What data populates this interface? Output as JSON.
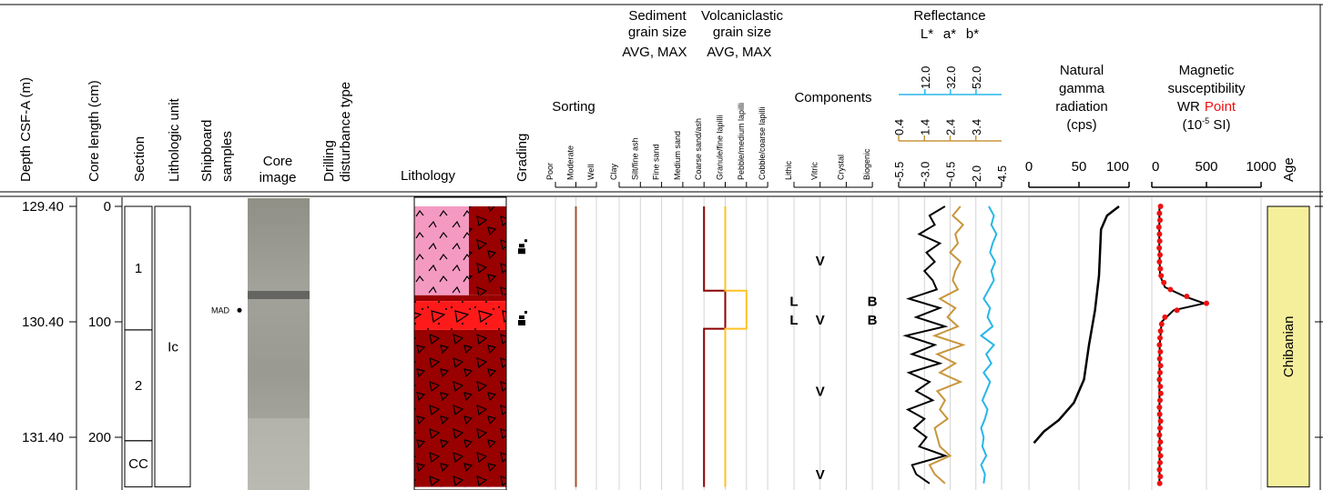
{
  "header": {
    "depth": "Depth CSF-A (m)",
    "core_length": "Core length (cm)",
    "section": "Section",
    "lithologic_unit": "Lithologic unit",
    "shipboard_samples": [
      "Shipboard",
      "samples"
    ],
    "core_image": [
      "Core",
      "image"
    ],
    "drilling_disturbance": [
      "Drilling",
      "disturbance type"
    ],
    "lithology": "Lithology",
    "grading": "Grading",
    "sorting": "Sorting",
    "sediment_grain_size": {
      "title": [
        "Sediment",
        "grain size"
      ],
      "avg": "AVG,",
      "max": "MAX"
    },
    "volcaniclastic_grain_size": {
      "title": [
        "Volcaniclastic",
        "grain size"
      ],
      "avg": "AVG,",
      "max": "MAX"
    },
    "components": "Components",
    "reflectance": {
      "title": "Reflectance",
      "l": "L*",
      "a": "a*",
      "b": "b*"
    },
    "natural_gamma": [
      "Natural",
      "gamma",
      "radiation",
      "(cps)"
    ],
    "magnetic_susceptibility": {
      "lines": [
        "Magnetic",
        "susceptibility"
      ],
      "wr": "WR",
      "point": "Point",
      "unit_open": "(10",
      "unit_exp": "-5",
      "unit_close": " SI)"
    },
    "age": "Age"
  },
  "sorting_classes": [
    "Poor",
    "Moderate",
    "Well"
  ],
  "grain_size_classes": [
    "Clay",
    "Silt/fine ash",
    "Fine sand",
    "Medium sand",
    "Coarse sand/ash",
    "Granule/fine lapilli",
    "Pebble/medium lapilli",
    "Cobble/coarse lapilli"
  ],
  "component_classes": [
    "Lithic",
    "Vitric",
    "Crystal",
    "Biogenic"
  ],
  "depth_ticks": [
    {
      "value": 129.4,
      "label": "129.40"
    },
    {
      "value": 130.4,
      "label": "130.40"
    },
    {
      "value": 131.4,
      "label": "131.40"
    }
  ],
  "core_length_ticks": [
    0,
    100,
    200
  ],
  "sections": [
    {
      "label": "1",
      "top": 0,
      "bottom": 107
    },
    {
      "label": "2",
      "top": 107,
      "bottom": 203
    },
    {
      "label": "CC",
      "top": 203,
      "bottom": 243
    }
  ],
  "lithologic_unit": {
    "label": "Ic",
    "top": 0,
    "bottom": 243
  },
  "samples": [
    {
      "label": "MAD",
      "cm": 90
    }
  ],
  "lithology": [
    {
      "top": 0,
      "bottom": 77,
      "colors": [
        "#f49ac2",
        "#990000"
      ],
      "patterns": [
        "caret",
        "triangle"
      ]
    },
    {
      "top": 77,
      "bottom": 82,
      "colors": [
        "#990000"
      ],
      "patterns": [
        ""
      ]
    },
    {
      "top": 82,
      "bottom": 107,
      "colors": [
        "#ff1a1a"
      ],
      "patterns": [
        "dottri"
      ]
    },
    {
      "top": 107,
      "bottom": 243,
      "colors": [
        "#990000"
      ],
      "patterns": [
        "triangle"
      ]
    }
  ],
  "grading_cm": [
    38,
    100
  ],
  "sorting": {
    "color": "#a0522d",
    "steps": [
      {
        "top": 0,
        "bottom": 243,
        "class": 1
      }
    ]
  },
  "grain_size_avg": {
    "color": "#8b0000",
    "steps": [
      {
        "top": 0,
        "bottom": 73,
        "class": 4
      },
      {
        "top": 73,
        "bottom": 106,
        "class": 5
      },
      {
        "top": 106,
        "bottom": 243,
        "class": 4
      }
    ]
  },
  "grain_size_max": {
    "color": "#ffc125",
    "steps": [
      {
        "top": 0,
        "bottom": 73,
        "class": 5
      },
      {
        "top": 73,
        "bottom": 106,
        "class": 6
      },
      {
        "top": 106,
        "bottom": 243,
        "class": 5
      }
    ]
  },
  "components": [
    {
      "label": "V",
      "class": 1,
      "cm": 45
    },
    {
      "label": "L",
      "class": 0,
      "cm": 80
    },
    {
      "label": "B",
      "class": 3,
      "cm": 80
    },
    {
      "label": "V",
      "class": 1,
      "cm": 96
    },
    {
      "label": "L",
      "class": 0,
      "cm": 96
    },
    {
      "label": "B",
      "class": 3,
      "cm": 96
    },
    {
      "label": "V",
      "class": 1,
      "cm": 158
    },
    {
      "label": "V",
      "class": 1,
      "cm": 230
    }
  ],
  "reflectance": {
    "depth_cm": [
      0,
      8,
      16,
      24,
      32,
      40,
      48,
      56,
      64,
      72,
      80,
      88,
      96,
      104,
      112,
      120,
      128,
      136,
      144,
      152,
      160,
      168,
      176,
      184,
      192,
      200,
      208,
      216,
      224,
      232,
      240
    ],
    "L": {
      "color": "#29b6e8",
      "lim": [
        -8.5,
        72
      ],
      "ticks": [
        {
          "value": 12,
          "label": "12.0"
        },
        {
          "value": 32,
          "label": "32.0"
        },
        {
          "value": 52,
          "label": "52.0"
        }
      ],
      "values": [
        62,
        66,
        64,
        68,
        65,
        63,
        67,
        64,
        66,
        62,
        58,
        63,
        61,
        65,
        56,
        66,
        60,
        64,
        58,
        63,
        60,
        57,
        61,
        59,
        56,
        58,
        57,
        60,
        56,
        59,
        58
      ]
    },
    "a": {
      "color": "#c8963c",
      "lim": [
        0.4,
        4.4
      ],
      "ticks": [
        0.4,
        1.4,
        2.4,
        3.4
      ],
      "values": [
        2.8,
        2.5,
        2.9,
        2.6,
        2.7,
        2.4,
        2.8,
        2.6,
        2.5,
        2.7,
        2.0,
        2.6,
        2.3,
        2.7,
        1.8,
        2.9,
        1.9,
        2.6,
        2.0,
        2.8,
        1.9,
        2.2,
        2.0,
        2.3,
        1.8,
        1.9,
        2.0,
        2.4,
        1.6,
        1.8,
        2.2
      ]
    },
    "b": {
      "color": "#000000",
      "lim": [
        -5.5,
        4.5
      ],
      "ticks": [
        -5.5,
        {
          "value": -3,
          "label": "-3.0"
        },
        -0.5,
        {
          "value": 2,
          "label": "2.0"
        },
        4.5
      ],
      "values": [
        -1.0,
        -2.5,
        -2.0,
        -3.5,
        -1.5,
        -2.8,
        -2.0,
        -3.0,
        -2.2,
        -1.8,
        -4.5,
        -1.5,
        -3.8,
        -1.0,
        -4.8,
        -2.0,
        -4.2,
        -1.5,
        -4.5,
        -2.5,
        -3.8,
        -2.2,
        -4.6,
        -3.0,
        -4.0,
        -2.8,
        -3.5,
        -1.0,
        -4.2,
        -3.8,
        -2.5
      ]
    }
  },
  "gamma": {
    "lim": [
      0,
      100
    ],
    "ticks": [
      0,
      50,
      100
    ],
    "depth_cm": [
      0,
      8,
      20,
      60,
      90,
      120,
      150,
      170,
      185,
      195,
      205
    ],
    "values": [
      90,
      78,
      72,
      70,
      66,
      60,
      55,
      45,
      30,
      15,
      5
    ]
  },
  "ms": {
    "lim": [
      0,
      1000
    ],
    "ticks": [
      0,
      500,
      1000
    ],
    "wr": {
      "depth_cm": [
        0,
        30,
        60,
        70,
        78,
        84,
        90,
        100,
        120,
        160,
        200,
        240
      ],
      "values": [
        70,
        68,
        75,
        120,
        300,
        480,
        200,
        90,
        72,
        70,
        72,
        70
      ]
    },
    "point": {
      "color": "#ee1111",
      "depth_cm": [
        0,
        6,
        12,
        18,
        24,
        30,
        36,
        42,
        48,
        54,
        60,
        66,
        72,
        78,
        84,
        90,
        96,
        102,
        108,
        114,
        120,
        126,
        132,
        138,
        144,
        150,
        156,
        162,
        168,
        174,
        180,
        186,
        192,
        198,
        204,
        210,
        216,
        222,
        228,
        234,
        240
      ],
      "values": [
        80,
        70,
        75,
        65,
        70,
        72,
        68,
        75,
        70,
        78,
        85,
        110,
        170,
        320,
        500,
        230,
        120,
        90,
        80,
        75,
        70,
        78,
        72,
        80,
        75,
        70,
        78,
        82,
        75,
        70,
        72,
        80,
        75,
        70,
        78,
        72,
        80,
        75,
        70,
        78,
        72
      ]
    }
  },
  "age": {
    "label": "Chibanian",
    "color": "#f5ef9b",
    "top": 0,
    "bottom": 243
  }
}
